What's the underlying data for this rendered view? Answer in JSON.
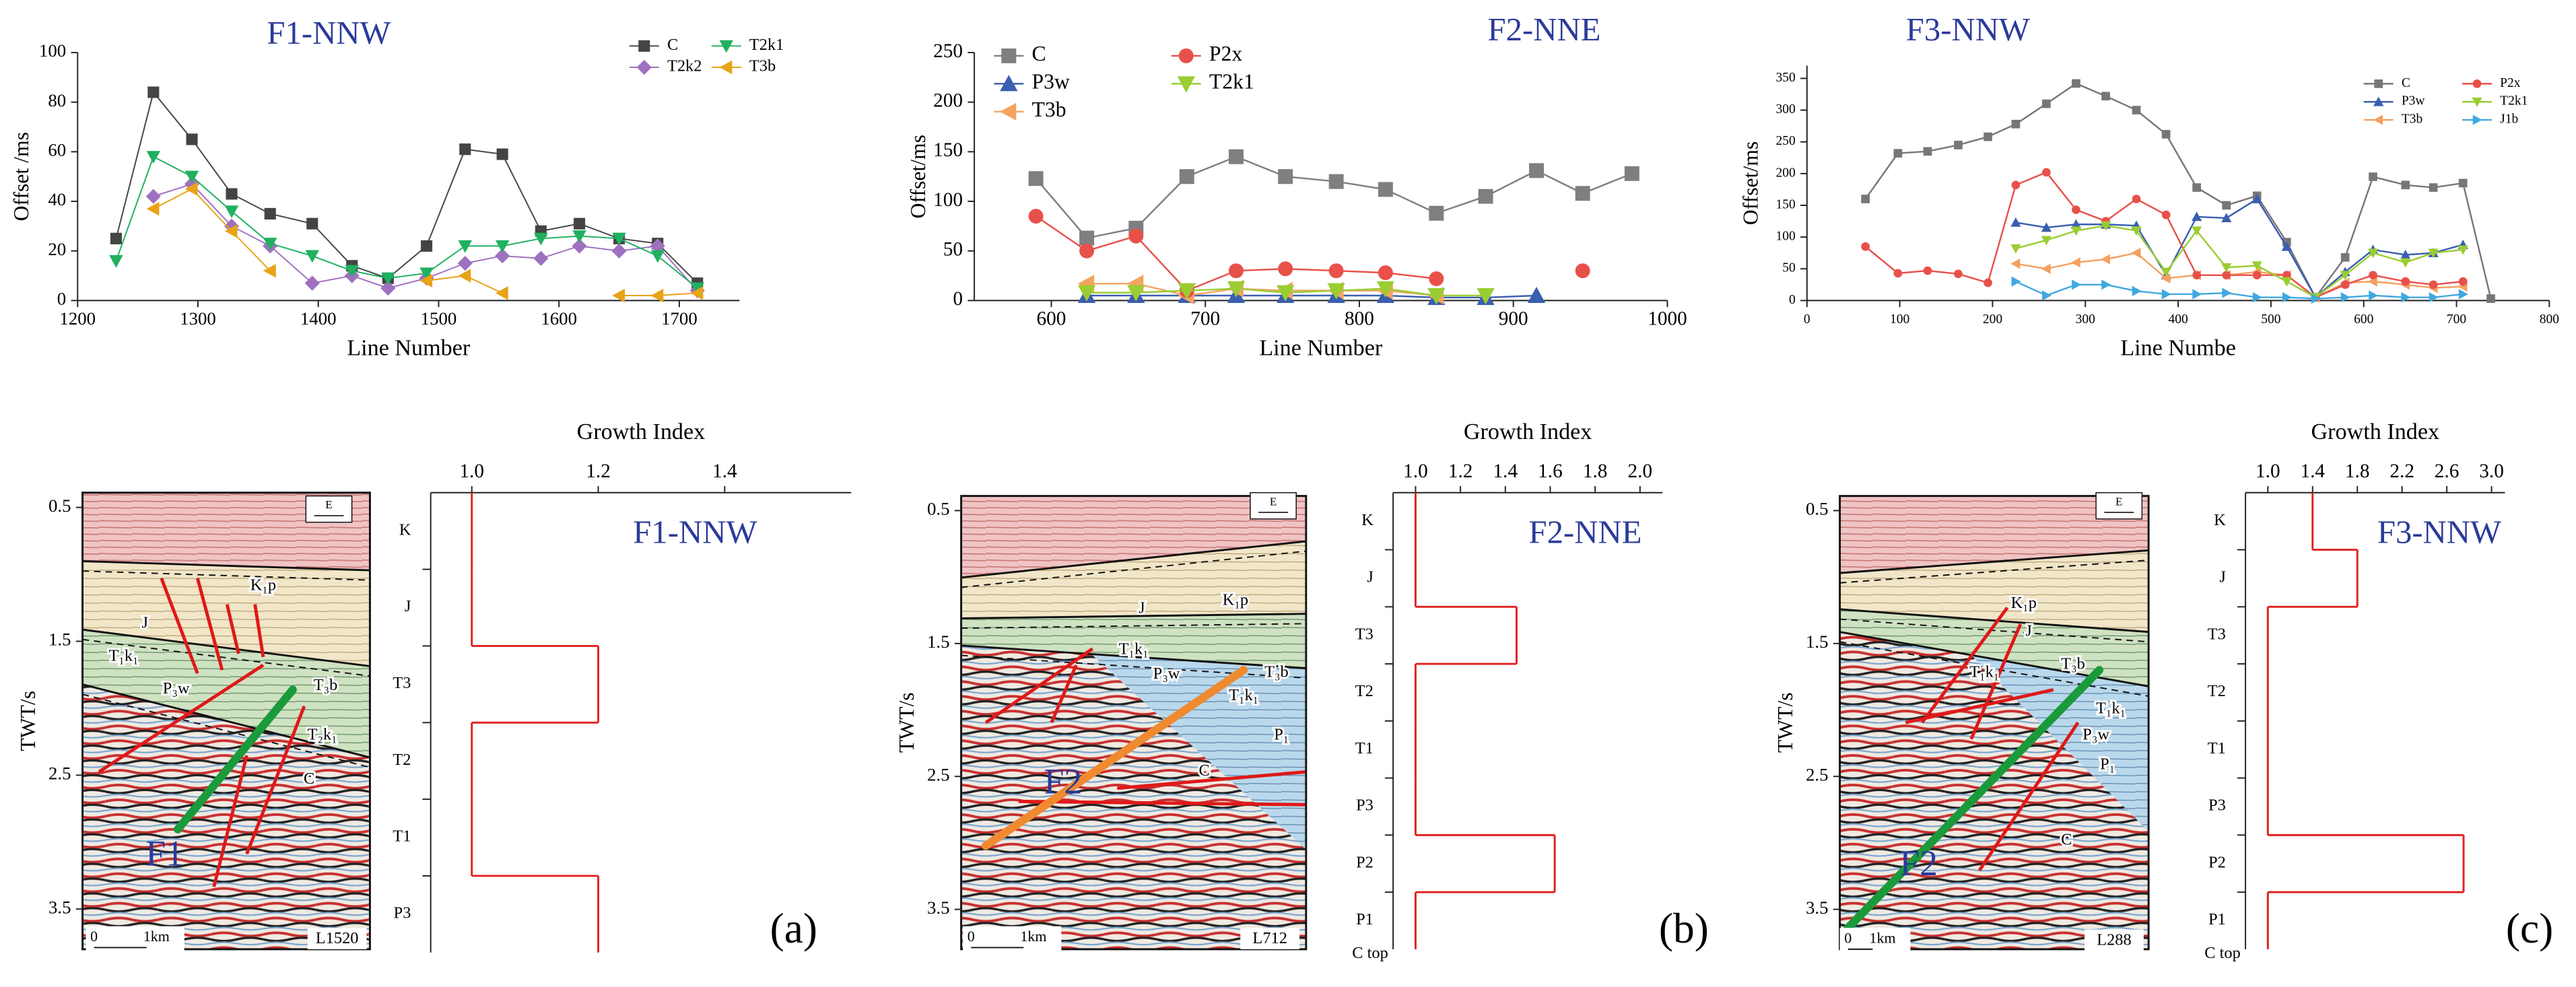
{
  "chart_data": [
    {
      "type": "line",
      "title": "F1-NNW",
      "xlabel": "Line Number",
      "ylabel": "Offset /ms",
      "xlim": [
        1200,
        1750
      ],
      "xticks": [
        1200,
        1300,
        1400,
        1500,
        1600,
        1700
      ],
      "ylim": [
        0,
        100
      ],
      "yticks": [
        0,
        20,
        40,
        60,
        80,
        100
      ],
      "x": [
        1232,
        1263,
        1295,
        1328,
        1360,
        1395,
        1428,
        1458,
        1490,
        1522,
        1553,
        1585,
        1617,
        1650,
        1682,
        1715
      ],
      "series": [
        {
          "name": "C",
          "color": "#444444",
          "marker": "square",
          "values": [
            25,
            84,
            65,
            43,
            35,
            31,
            14,
            9,
            22,
            61,
            59,
            28,
            31,
            25,
            23,
            7
          ]
        },
        {
          "name": "T2k2",
          "color": "#a070c0",
          "marker": "diamond",
          "values": [
            null,
            42,
            47,
            30,
            22,
            7,
            10,
            5,
            9,
            15,
            18,
            17,
            22,
            20,
            22,
            4
          ]
        },
        {
          "name": "T2k1",
          "color": "#20b060",
          "marker": "down",
          "values": [
            16,
            58,
            50,
            36,
            23,
            18,
            12,
            9,
            11,
            22,
            22,
            25,
            26,
            25,
            18,
            5
          ]
        },
        {
          "name": "T3b",
          "color": "#e8a317",
          "marker": "left",
          "values": [
            null,
            37,
            45,
            28,
            12,
            null,
            null,
            null,
            8,
            10,
            3,
            null,
            null,
            2,
            2,
            3
          ]
        }
      ]
    },
    {
      "type": "line",
      "title": "F2-NNE",
      "xlabel": "Line Number",
      "ylabel": "Offset/ms",
      "xlim": [
        550,
        1000
      ],
      "xticks": [
        600,
        700,
        800,
        900,
        1000
      ],
      "ylim": [
        0,
        250
      ],
      "yticks": [
        0,
        50,
        100,
        150,
        200,
        250
      ],
      "x": [
        590,
        623,
        655,
        688,
        720,
        752,
        785,
        817,
        850,
        882,
        915,
        945,
        977
      ],
      "series": [
        {
          "name": "C",
          "color": "#7f7f7f",
          "marker": "square",
          "values": [
            123,
            63,
            73,
            125,
            145,
            125,
            120,
            112,
            88,
            105,
            131,
            108,
            128
          ]
        },
        {
          "name": "P3w",
          "color": "#3a5fb0",
          "marker": "up",
          "values": [
            null,
            5,
            5,
            5,
            5,
            5,
            5,
            5,
            3,
            3,
            5,
            null,
            null
          ]
        },
        {
          "name": "T3b",
          "color": "#f4a460",
          "marker": "left",
          "values": [
            null,
            17,
            17,
            5,
            12,
            10,
            10,
            10,
            5,
            null,
            null,
            null,
            null
          ]
        },
        {
          "name": "P2x",
          "color": "#e8504a",
          "marker": "circle",
          "values": [
            85,
            50,
            65,
            10,
            30,
            32,
            30,
            28,
            22,
            null,
            null,
            30,
            null
          ]
        },
        {
          "name": "T2k1",
          "color": "#9acd32",
          "marker": "down",
          "values": [
            null,
            8,
            8,
            10,
            12,
            8,
            10,
            12,
            5,
            5,
            null,
            null,
            null
          ]
        }
      ]
    },
    {
      "type": "line",
      "title": "F3-NNW",
      "xlabel": "Line Numbe",
      "ylabel": "Offset/ms",
      "xlim": [
        0,
        800
      ],
      "xticks": [
        0,
        100,
        200,
        300,
        400,
        500,
        600,
        700,
        800
      ],
      "ylim": [
        0,
        370
      ],
      "yticks": [
        0,
        50,
        100,
        150,
        200,
        250,
        300,
        350
      ],
      "x": [
        63,
        98,
        130,
        163,
        195,
        225,
        258,
        290,
        322,
        355,
        387,
        420,
        452,
        485,
        517,
        548,
        580,
        610,
        645,
        675,
        707,
        737
      ],
      "series": [
        {
          "name": "C",
          "color": "#777777",
          "marker": "square",
          "values": [
            160,
            232,
            235,
            245,
            258,
            278,
            310,
            342,
            322,
            300,
            262,
            178,
            150,
            165,
            92,
            5,
            68,
            195,
            182,
            178,
            185,
            3
          ]
        },
        {
          "name": "P3w",
          "color": "#3a5fb0",
          "marker": "up",
          "values": [
            null,
            null,
            null,
            null,
            null,
            123,
            115,
            120,
            120,
            118,
            40,
            132,
            130,
            160,
            85,
            5,
            45,
            80,
            72,
            75,
            88,
            null
          ]
        },
        {
          "name": "T3b",
          "color": "#f4a060",
          "marker": "left",
          "values": [
            null,
            null,
            null,
            null,
            null,
            58,
            50,
            60,
            65,
            75,
            35,
            40,
            40,
            45,
            40,
            5,
            28,
            30,
            25,
            20,
            22,
            null
          ]
        },
        {
          "name": "P2x",
          "color": "#e8504a",
          "marker": "circle",
          "values": [
            85,
            43,
            47,
            42,
            28,
            182,
            202,
            143,
            125,
            160,
            135,
            40,
            40,
            40,
            40,
            5,
            25,
            40,
            30,
            25,
            30,
            null
          ]
        },
        {
          "name": "T2k1",
          "color": "#9acd32",
          "marker": "down",
          "values": [
            null,
            null,
            null,
            null,
            null,
            82,
            95,
            110,
            118,
            110,
            45,
            110,
            52,
            55,
            30,
            5,
            40,
            75,
            60,
            75,
            80,
            null
          ]
        },
        {
          "name": "J1b",
          "color": "#40a8e0",
          "marker": "right",
          "values": [
            null,
            null,
            null,
            null,
            null,
            30,
            8,
            25,
            25,
            15,
            10,
            10,
            12,
            5,
            5,
            3,
            5,
            8,
            5,
            5,
            10,
            null
          ]
        }
      ]
    },
    {
      "type": "step",
      "title": "Growth Index",
      "label": "F1-NNW",
      "panel": "(a)",
      "color": "#e02020",
      "xlim": [
        0.935,
        1.6
      ],
      "xticks": [
        {
          "value": 1,
          "label": "1.0"
        },
        1.2,
        1.4
      ],
      "categories": [
        "K",
        "J",
        "T3",
        "T2",
        "T1",
        "P3"
      ],
      "values": [
        1,
        1,
        1.2,
        1,
        1,
        1.2
      ]
    },
    {
      "type": "step",
      "title": "Growth Index",
      "label": "F2-NNE",
      "panel": "(b)",
      "end_label": "C top",
      "color": "#e02020",
      "xlim": [
        0.9,
        2.1
      ],
      "xticks": [
        {
          "value": 1,
          "label": "1.0"
        },
        1.2,
        1.4,
        1.6,
        1.8,
        {
          "value": 2,
          "label": "2.0"
        }
      ],
      "categories": [
        "K",
        "J",
        "T3",
        "T2",
        "T1",
        "P3",
        "P2",
        "P1"
      ],
      "values": [
        1,
        1,
        1.45,
        1,
        1,
        1,
        1.62,
        1
      ]
    },
    {
      "type": "step",
      "title": "Growth Index",
      "label": "F3-NNW",
      "panel": "(c)",
      "end_label": "C top",
      "color": "#e02020",
      "xlim": [
        0.8,
        3.12
      ],
      "xticks": [
        {
          "value": 1,
          "label": "1.0"
        },
        1.4,
        1.8,
        2.2,
        2.6,
        {
          "value": 3,
          "label": "3.0"
        }
      ],
      "categories": [
        "K",
        "J",
        "T3",
        "T2",
        "T1",
        "P3",
        "P2",
        "P1"
      ],
      "values": [
        1.4,
        1.8,
        1,
        1,
        1,
        1,
        2.75,
        1
      ]
    }
  ],
  "sections": [
    {
      "ylabel": "TWT/s",
      "ylim": [
        0.39,
        3.8
      ],
      "yticks": [
        0.5,
        1.5,
        2.5,
        3.5
      ],
      "direction": "E",
      "line": "L1520",
      "scale": [
        "0",
        "1km"
      ],
      "fault": "F1",
      "labels": [
        "K₁p",
        "J",
        "T₁k₁",
        "P₃w",
        "T₃b",
        "T₂k₁",
        "C"
      ]
    },
    {
      "ylabel": "TWT/s",
      "ylim": [
        0.39,
        3.8
      ],
      "yticks": [
        0.5,
        1.5,
        2.5,
        3.5
      ],
      "direction": "E",
      "line": "L712",
      "scale": [
        "0",
        "1km"
      ],
      "fault": "F2",
      "labels": [
        "K₁p",
        "J",
        "T₁k₁",
        "P₃w",
        "T₃b",
        "T₁k₁",
        "P₁",
        "C"
      ]
    },
    {
      "ylabel": "TWT/s",
      "ylim": [
        0.39,
        3.8
      ],
      "yticks": [
        0.5,
        1.5,
        2.5,
        3.5
      ],
      "direction": "E",
      "line": "L288",
      "scale": [
        "0",
        "1km"
      ],
      "fault": "F2",
      "labels": [
        "K₁p",
        "J",
        "T₁k₁",
        "T₃b",
        "T₁k₁",
        "P₃w",
        "P₁",
        "C"
      ]
    }
  ]
}
